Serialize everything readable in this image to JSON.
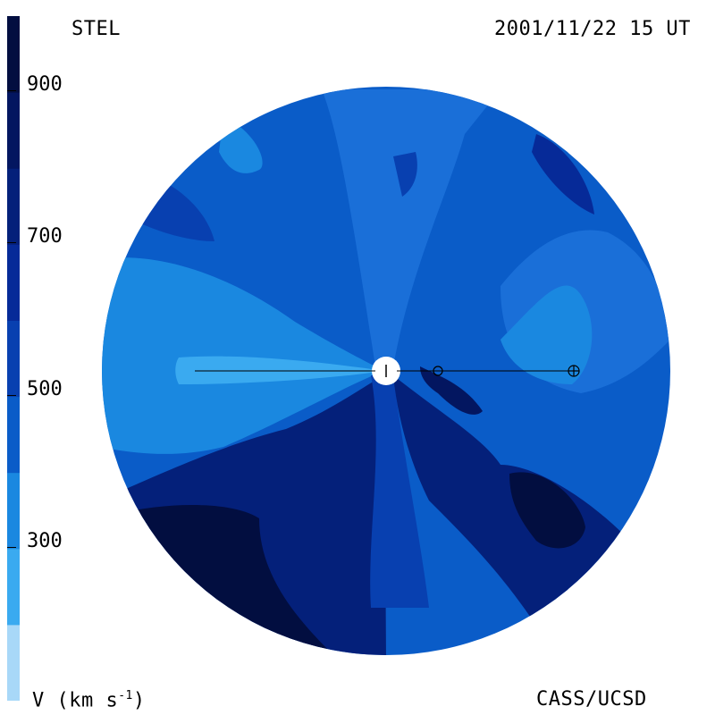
{
  "header": {
    "source": "STEL",
    "datetime": "2001/11/22 15 UT"
  },
  "footer": {
    "variable": "V (km s",
    "variable_exp": "-1",
    "variable_close": ")",
    "credit": "CASS/UCSD"
  },
  "scale": {
    "min": 100,
    "max": 1000,
    "tick_labels": [
      "900",
      "700",
      "500",
      "300"
    ],
    "tick_values": [
      900,
      700,
      500,
      300
    ],
    "band_colors": [
      "#a8d8f8",
      "#3aaaf0",
      "#1a88e0",
      "#0a5cc8",
      "#0840b0",
      "#062a98",
      "#04207a",
      "#031660",
      "#020e40"
    ]
  },
  "map": {
    "background": "#0a5cc8",
    "markers": [
      "sun-marker",
      "earth-marker",
      "body-marker"
    ]
  }
}
